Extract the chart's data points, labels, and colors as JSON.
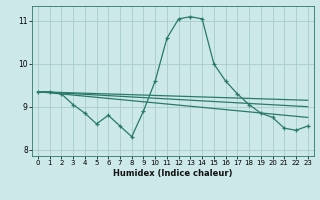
{
  "title": "",
  "xlabel": "Humidex (Indice chaleur)",
  "bg_color": "#cce8e8",
  "grid_color": "#aacccc",
  "line_color": "#2a7a6a",
  "xlim": [
    -0.5,
    23.5
  ],
  "ylim": [
    7.85,
    11.35
  ],
  "xticks": [
    0,
    1,
    2,
    3,
    4,
    5,
    6,
    7,
    8,
    9,
    10,
    11,
    12,
    13,
    14,
    15,
    16,
    17,
    18,
    19,
    20,
    21,
    22,
    23
  ],
  "yticks": [
    8,
    9,
    10,
    11
  ],
  "main_series_x": [
    0,
    1,
    2,
    3,
    4,
    5,
    6,
    7,
    8,
    9,
    10,
    11,
    12,
    13,
    14,
    15,
    16,
    17,
    18,
    19,
    20,
    21,
    22,
    23
  ],
  "main_series_y": [
    9.35,
    9.35,
    9.3,
    9.05,
    8.85,
    8.6,
    8.8,
    8.55,
    8.3,
    8.9,
    9.6,
    10.6,
    11.05,
    11.1,
    11.05,
    10.0,
    9.6,
    9.3,
    9.05,
    8.85,
    8.75,
    8.5,
    8.45,
    8.55
  ],
  "line1_x": [
    0,
    23
  ],
  "line1_y": [
    9.35,
    8.75
  ],
  "line2_x": [
    0,
    23
  ],
  "line2_y": [
    9.35,
    9.0
  ],
  "line3_x": [
    0,
    23
  ],
  "line3_y": [
    9.35,
    9.15
  ]
}
